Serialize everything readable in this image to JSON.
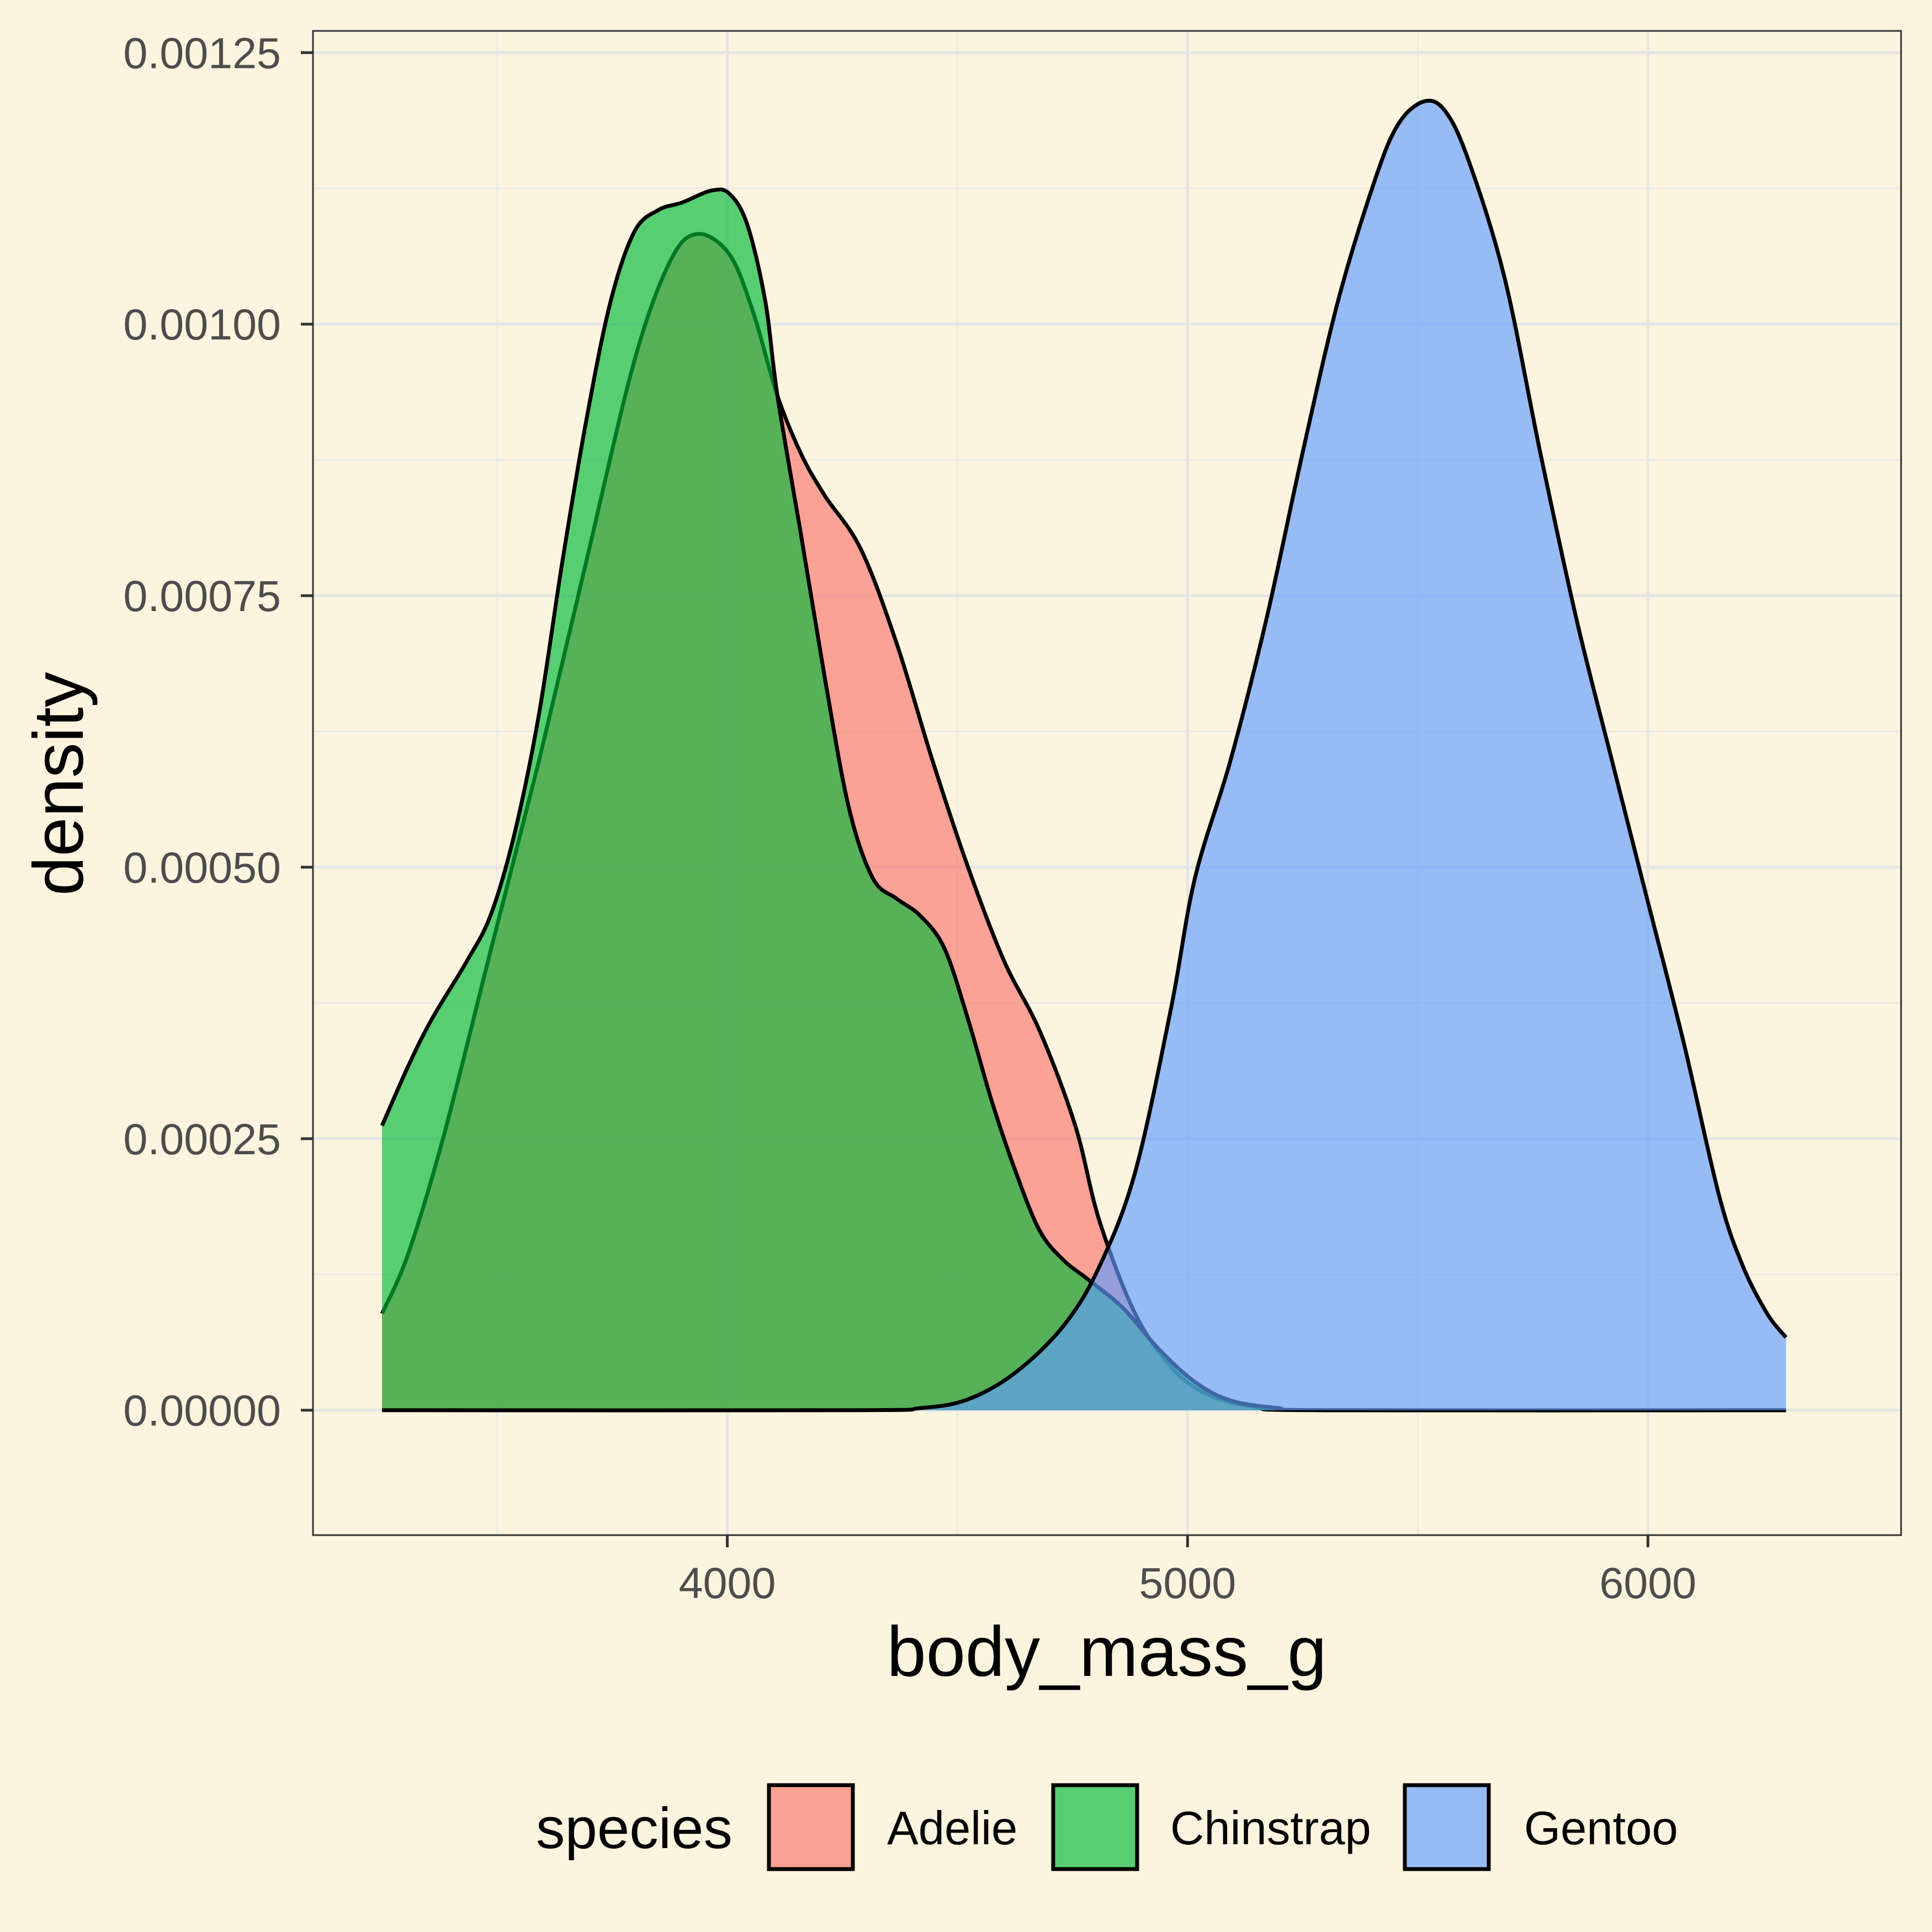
{
  "chart_data": {
    "type": "area",
    "subtype": "density",
    "xlabel": "body_mass_g",
    "ylabel": "density",
    "xlim": [
      3100,
      6550
    ],
    "ylim": [
      -0.000115,
      0.00127
    ],
    "x_ticks": [
      4000,
      5000,
      6000
    ],
    "x_tick_labels": [
      "4000",
      "5000",
      "6000"
    ],
    "y_ticks": [
      0,
      0.00025,
      0.0005,
      0.00075,
      0.001,
      0.00125
    ],
    "y_tick_labels": [
      "0.00000",
      "0.00025",
      "0.00050",
      "0.00075",
      "0.00100",
      "0.00125"
    ],
    "grid": true,
    "background": "#FCF4DF",
    "fill_alpha": 0.65,
    "legend": {
      "title": "species",
      "position": "bottom"
    },
    "series": [
      {
        "name": "Adelie",
        "color": "#F8766D",
        "x": [
          3250,
          3306,
          3383,
          3487,
          3591,
          3694,
          3798,
          3876,
          3935,
          4005,
          4057,
          4109,
          4161,
          4212,
          4290,
          4368,
          4446,
          4523,
          4601,
          4679,
          4756,
          4808,
          4886,
          4964,
          5041,
          5145,
          5301,
          6300
        ],
        "y": [
          8.9e-05,
          0.000143,
          0.000251,
          0.000425,
          0.000598,
          0.000782,
          0.000966,
          0.001058,
          0.001083,
          0.001064,
          0.00101,
          0.000934,
          0.00088,
          0.000842,
          0.000793,
          0.000706,
          0.000598,
          0.0005,
          0.000414,
          0.000349,
          0.000262,
          0.000175,
          8.9e-05,
          4e-05,
          1.5e-05,
          3e-06,
          0,
          0
        ]
      },
      {
        "name": "Chinstrap",
        "color": "#00BA38",
        "x": [
          3250,
          3306,
          3358,
          3435,
          3487,
          3539,
          3591,
          3642,
          3694,
          3746,
          3798,
          3850,
          3902,
          3966,
          4005,
          4044,
          4083,
          4109,
          4161,
          4212,
          4264,
          4316,
          4368,
          4420,
          4472,
          4523,
          4575,
          4627,
          4679,
          4731,
          4782,
          4860,
          4938,
          5016,
          5093,
          5197,
          5301,
          6300
        ],
        "y": [
          0.000262,
          0.000316,
          0.00036,
          0.000414,
          0.000457,
          0.000533,
          0.000641,
          0.000782,
          0.000912,
          0.00102,
          0.001085,
          0.001105,
          0.001112,
          0.001123,
          0.00112,
          0.001091,
          0.00102,
          0.000934,
          0.000804,
          0.000674,
          0.000555,
          0.00049,
          0.000471,
          0.000455,
          0.000425,
          0.00036,
          0.000284,
          0.000219,
          0.000165,
          0.000138,
          0.000121,
          9.4e-05,
          5.6e-05,
          2.6e-05,
          9e-06,
          2e-06,
          0,
          0
        ]
      },
      {
        "name": "Gentoo",
        "color": "#619CFF",
        "x": [
          3250,
          4264,
          4420,
          4523,
          4627,
          4731,
          4808,
          4886,
          4964,
          5016,
          5093,
          5171,
          5249,
          5326,
          5404,
          5456,
          5513,
          5560,
          5611,
          5689,
          5767,
          5845,
          5922,
          6000,
          6078,
          6155,
          6207,
          6259,
          6300
        ],
        "y": [
          0,
          0,
          2e-06,
          1e-05,
          3.5e-05,
          7.8e-05,
          0.000132,
          0.000219,
          0.00037,
          0.00049,
          0.000598,
          0.000728,
          0.00088,
          0.00102,
          0.001129,
          0.001183,
          0.001205,
          0.001196,
          0.00115,
          0.001042,
          0.00088,
          0.000728,
          0.000598,
          0.000468,
          0.000338,
          0.000197,
          0.000132,
          8.9e-05,
          6.7e-05
        ]
      }
    ]
  }
}
